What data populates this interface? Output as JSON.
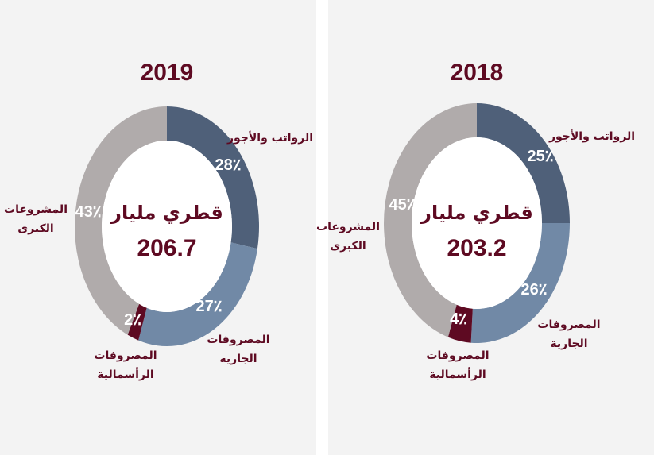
{
  "chart_data": [
    {
      "type": "pie",
      "title": "2019",
      "center_text": "قطري مليار",
      "total": "206.7",
      "categories": [
        "الرواتب والأجور",
        "المصروفات الجارية",
        "المصروفات الرأسمالية",
        "المشروعات الكبرى"
      ],
      "values": [
        28,
        27,
        2,
        43
      ],
      "value_labels": [
        "28٪",
        "27٪",
        "2٪",
        "43٪"
      ],
      "colors": [
        "#4f6079",
        "#7189a6",
        "#5e0a22",
        "#b0abab"
      ]
    },
    {
      "type": "pie",
      "title": "2018",
      "center_text": "قطري مليار",
      "total": "203.2",
      "categories": [
        "الرواتب والأجور",
        "المصروفات الجارية",
        "المصروفات الرأسمالية",
        "المشروعات الكبرى"
      ],
      "values": [
        25,
        26,
        4,
        45
      ],
      "value_labels": [
        "25٪",
        "26٪",
        "4٪",
        "45٪"
      ],
      "colors": [
        "#4f6079",
        "#7189a6",
        "#5e0a22",
        "#b0abab"
      ]
    }
  ]
}
